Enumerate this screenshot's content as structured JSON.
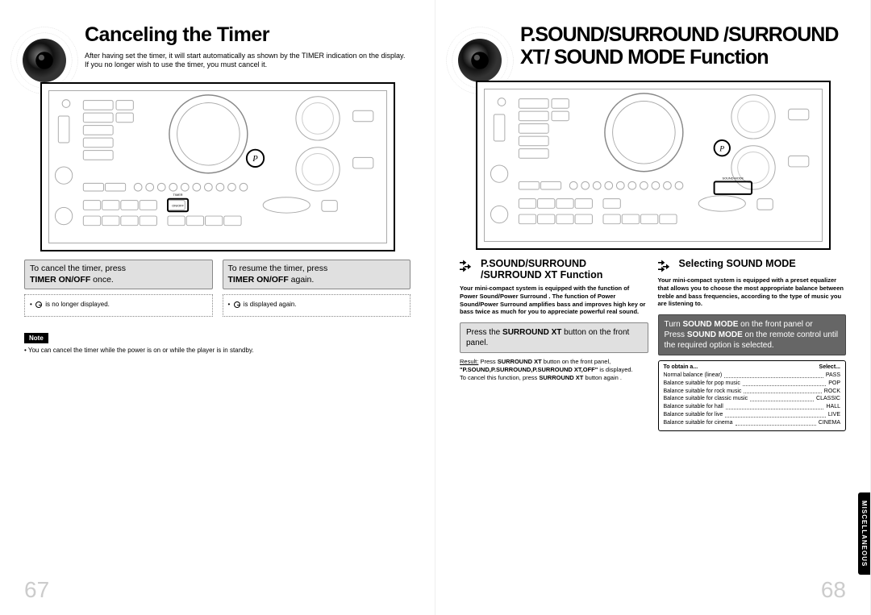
{
  "page67": {
    "title": "Canceling the Timer",
    "subtitle": "After having set the timer, it will start automatically as shown by the TIMER indication on the display. If you no longer wish to use the timer, you must cancel it.",
    "col1": {
      "head_line1": "To cancel the timer, press",
      "head_bold": "TIMER ON/OFF",
      "head_suffix": " once.",
      "body_suffix": "is no longer displayed."
    },
    "col2": {
      "head_line1": "To resume the timer, press",
      "head_bold": "TIMER ON/OFF",
      "head_suffix": " again.",
      "body_suffix": "is displayed again."
    },
    "note_label": "Note",
    "note_text": "• You can cancel the timer while the power is on or while the player is in standby.",
    "page_number": "67"
  },
  "page68": {
    "title": "P.SOUND/SURROUND /SURROUND XT/ SOUND MODE Function",
    "left": {
      "heading": "P.SOUND/SURROUND /SURROUND XT Function",
      "desc": "Your mini-compact system is equipped with the function of Power Sound/Power Surround . The function of Power Sound/Power Surround amplifies bass and improves high key or bass twice as much for you to appreciate powerful real sound.",
      "step_prefix": "Press the ",
      "step_bold": "SURROUND XT",
      "step_suffix": " button on the front panel.",
      "result_label": "Result:",
      "result_line1a": "Press ",
      "result_line1b": "SURROUND XT",
      "result_line1c": " button on the front panel,",
      "result_line2": "\"P.SOUND,P.SURROUND,P.SURROUND XT,OFF\"",
      "result_line2b": " is displayed.",
      "result_line3a": "To cancel this function, press ",
      "result_line3b": "SURROUND XT",
      "result_line3c": " button again ."
    },
    "right": {
      "heading": "Selecting SOUND MODE",
      "desc": "Your mini-compact system is equipped with a preset equalizer that allows you to choose the most appropriate balance between treble and bass frequencies, according to the type of music you are listening to.",
      "step_line1a": "Turn ",
      "step_line1b": "SOUND MODE",
      "step_line1c": " on the front panel or",
      "step_line2a": "Press ",
      "step_line2b": "SOUND MODE",
      "step_line2c": " on the remote control until the required option is selected.",
      "table_head1": "To obtain a...",
      "table_head2": "Select...",
      "rows": [
        {
          "a": "Normal balance (linear)",
          "b": "PASS"
        },
        {
          "a": "Balance suitable for pop music",
          "b": "POP"
        },
        {
          "a": "Balance suitable for rock music",
          "b": "ROCK"
        },
        {
          "a": "Balance suitable for classic music",
          "b": "CLASSIC"
        },
        {
          "a": "Balance suitable for hall",
          "b": "HALL"
        },
        {
          "a": "Balance suitable for live",
          "b": "LIVE"
        },
        {
          "a": "Balance suitable for cinema",
          "b": "CINEMA"
        }
      ]
    },
    "side_tab": "MISCELLANEOUS",
    "page_number": "68"
  }
}
